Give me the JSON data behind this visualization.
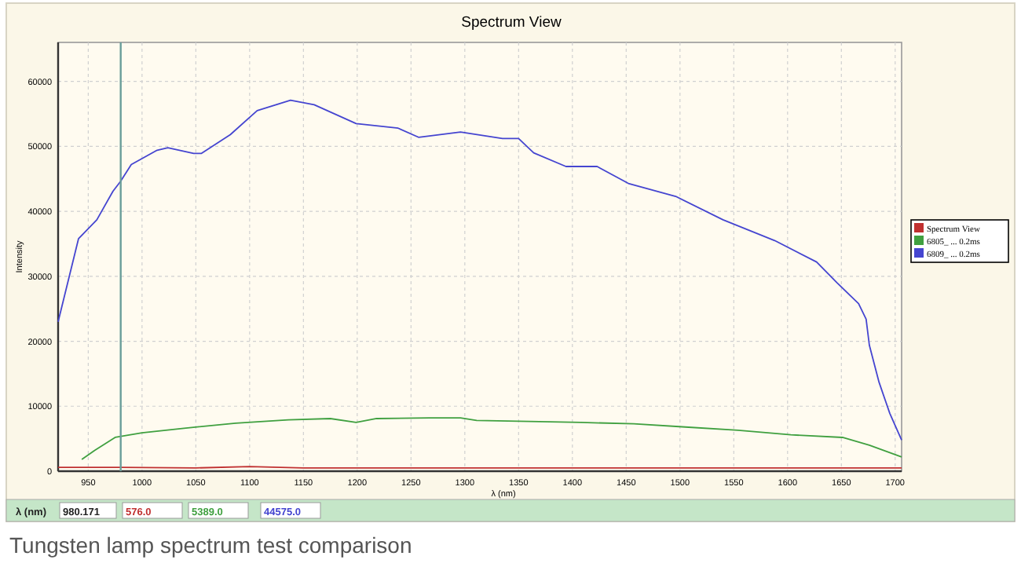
{
  "chart_data": {
    "type": "line",
    "title": "Spectrum View",
    "xlabel": "λ (nm)",
    "ylabel": "Intensity",
    "xlim": [
      922,
      1706
    ],
    "ylim": [
      0,
      66000
    ],
    "xticks": [
      950,
      1000,
      1050,
      1100,
      1150,
      1200,
      1250,
      1300,
      1350,
      1400,
      1450,
      1500,
      1550,
      1600,
      1650,
      1700
    ],
    "yticks": [
      0,
      10000,
      20000,
      30000,
      40000,
      50000,
      60000
    ],
    "grid": true,
    "legend": "right",
    "line_style": "solid",
    "ref_lines": [
      {
        "axis": "x",
        "value": 980.171,
        "color": "#6a9e9a"
      }
    ],
    "annotations": [
      "λ (nm)",
      "980.171",
      "576.0",
      "5389.0",
      "44575.0",
      "Tungsten lamp spectrum test comparison"
    ],
    "series": [
      {
        "name": "Spectrum View",
        "color": "#c03030",
        "x": [
          922,
          980,
          1050,
          1100,
          1150,
          1200,
          1300,
          1400,
          1500,
          1600,
          1706
        ],
        "values": [
          600,
          600,
          500,
          700,
          500,
          500,
          500,
          500,
          500,
          500,
          500
        ]
      },
      {
        "name": "6805_ ... 0.2ms",
        "color": "#40a040",
        "x": [
          944,
          956,
          975,
          1000,
          1039,
          1087,
          1136,
          1175,
          1199,
          1218,
          1267,
          1296,
          1311,
          1350,
          1408,
          1457,
          1505,
          1554,
          1603,
          1651,
          1676,
          1706
        ],
        "values": [
          1800,
          3200,
          5200,
          5900,
          6600,
          7400,
          7900,
          8100,
          7500,
          8100,
          8200,
          8200,
          7800,
          7700,
          7500,
          7300,
          6800,
          6300,
          5600,
          5200,
          4000,
          2200
        ]
      },
      {
        "name": "6809_ ... 0.2ms",
        "color": "#4545d0",
        "x": [
          922,
          941,
          958,
          973,
          980,
          990,
          1014,
          1024,
          1048,
          1055,
          1082,
          1107,
          1138,
          1160,
          1199,
          1238,
          1257,
          1296,
          1335,
          1350,
          1364,
          1394,
          1423,
          1452,
          1496,
          1540,
          1588,
          1627,
          1646,
          1666,
          1673,
          1676,
          1685,
          1695,
          1706
        ],
        "values": [
          23000,
          35800,
          38700,
          43100,
          44600,
          47200,
          49400,
          49800,
          48900,
          48900,
          51800,
          55500,
          57100,
          56400,
          53500,
          52800,
          51400,
          52200,
          51200,
          51200,
          49000,
          46900,
          46900,
          44300,
          42300,
          38700,
          35500,
          32200,
          29000,
          25800,
          23400,
          19400,
          13700,
          8900,
          4800
        ]
      }
    ]
  }
}
